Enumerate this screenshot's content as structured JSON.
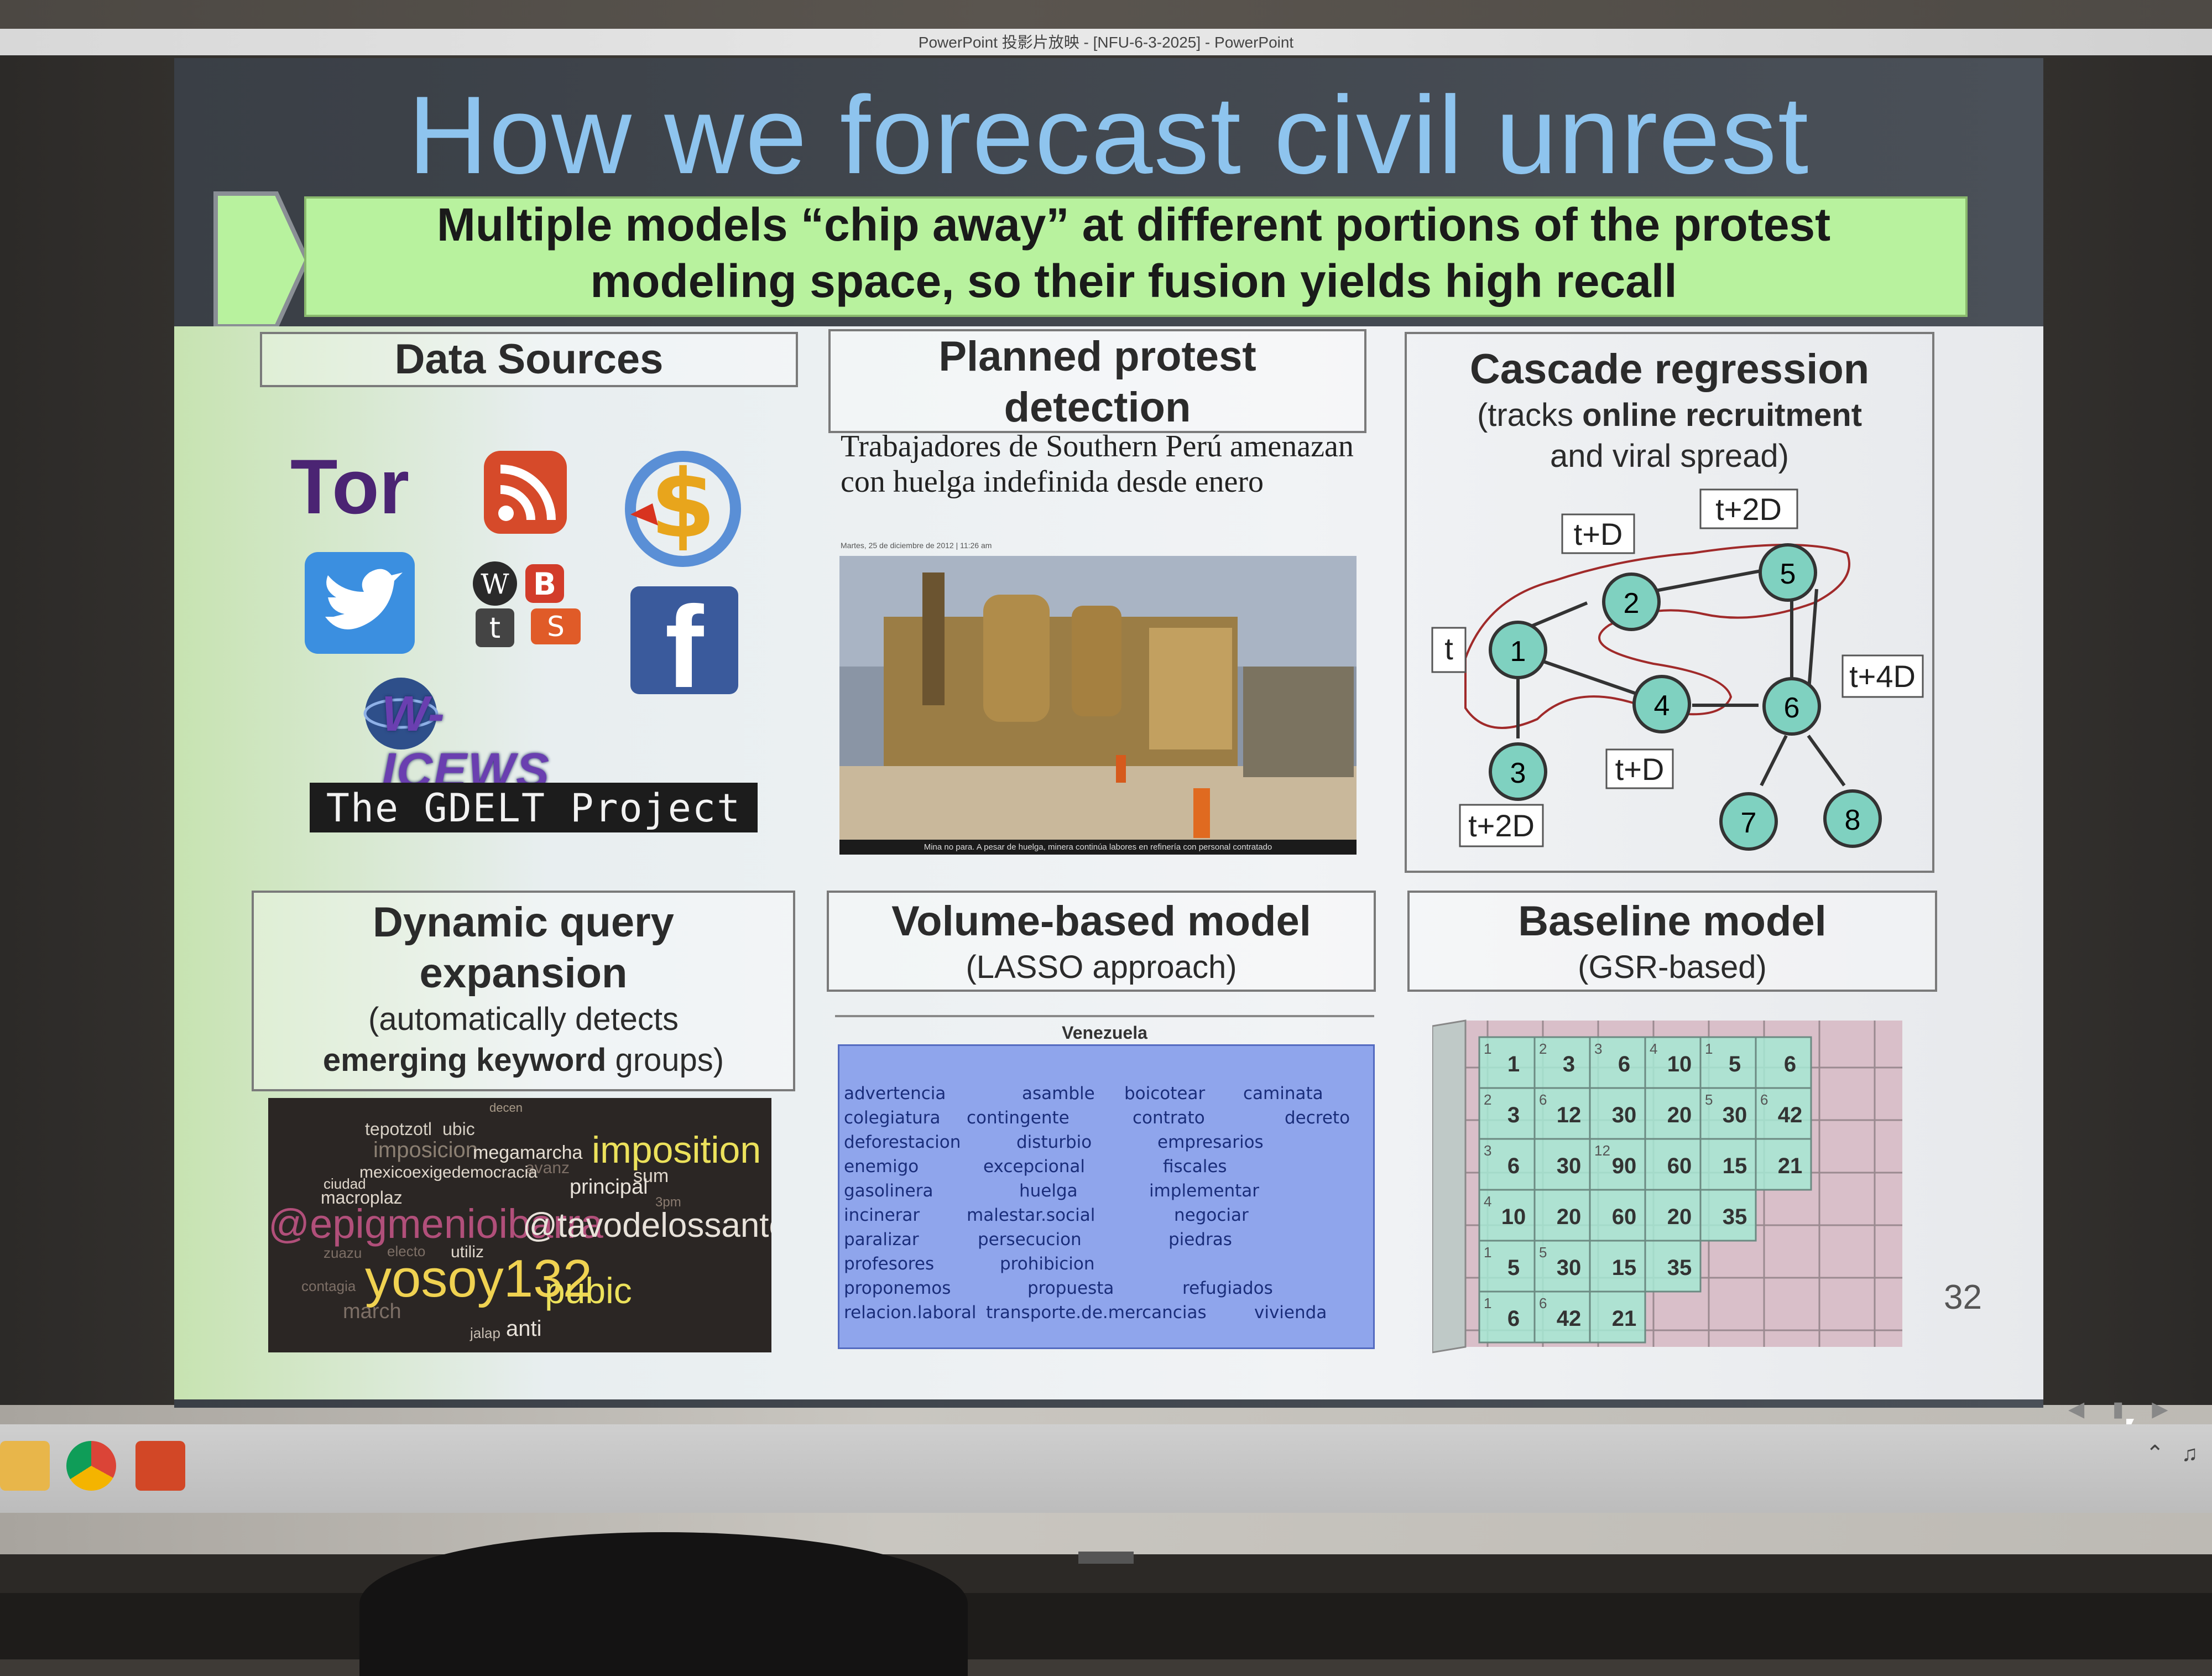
{
  "window": {
    "title": "PowerPoint 投影片放映 - [NFU-6-3-2025] - PowerPoint"
  },
  "slide": {
    "title": "How we forecast civil unrest",
    "subtitle_line1": "Multiple models “chip away” at different portions of the protest",
    "subtitle_line2": "modeling space, so their fusion yields high recall",
    "number": "32"
  },
  "data_sources": {
    "header": "Data Sources",
    "logos": [
      "tor-logo",
      "rss-icon",
      "currency-icon",
      "twitter-icon",
      "social-blogs-icon",
      "facebook-icon",
      "w-icews-logo"
    ],
    "tor_label": "Tor",
    "facebook_label": "f",
    "icews_label": "W-ICEWS",
    "gdelt_label": "The GDELT Project"
  },
  "planned_protest": {
    "header_line1": "Planned protest",
    "header_line2": "detection",
    "headline": "Trabajadores de Southern Perú amenazan con huelga indefinida desde enero",
    "date": "Martes, 25 de diciembre de 2012 | 11:26 am",
    "caption": "Mina no para. A pesar de huelga, minera continúa labores en refinería con personal contratado"
  },
  "cascade": {
    "header": "Cascade regression",
    "sub_prefix": "(tracks ",
    "sub_bold": "online recruitment",
    "sub_line2": "and viral spread)",
    "nodes": [
      "1",
      "2",
      "3",
      "4",
      "5",
      "6",
      "7",
      "8"
    ],
    "time_labels": [
      "t",
      "t+D",
      "t+2D",
      "t+4D",
      "t+D",
      "t+2D"
    ]
  },
  "dynamic_query": {
    "header_line1": "Dynamic query",
    "header_line2": "expansion",
    "sub_line1": "(automatically detects",
    "sub_bold": "emerging keyword",
    "sub_tail": " groups)",
    "words": [
      "decen",
      "tepotzotl",
      "ubic",
      "imposicion",
      "megamarcha",
      "imposition",
      "avanz",
      "mexicoexigedemocracia",
      "sum",
      "ciudad",
      "macroplaz",
      "principal",
      "3pm",
      "@epigmenioibarra",
      "@tavodelossantos",
      "zuazu",
      "electo",
      "utiliz",
      "yosoy132",
      "pubic",
      "contagia",
      "march",
      "jalap",
      "anti"
    ]
  },
  "volume_model": {
    "header": "Volume-based model",
    "sub": "(LASSO approach)",
    "panel_title": "Venezuela",
    "rows": [
      [
        "advertencia",
        "asamble",
        "boicotear",
        "caminata"
      ],
      [
        "colegiatura",
        "contingente",
        "contrato",
        "decreto"
      ],
      [
        "deforestacion",
        "disturbio",
        "empresarios"
      ],
      [
        "enemigo",
        "excepcional",
        "fiscales"
      ],
      [
        "gasolinera",
        "huelga",
        "implementar"
      ],
      [
        "incinerar",
        "malestar.social",
        "negociar"
      ],
      [
        "paralizar",
        "persecucion",
        "piedras"
      ],
      [
        "profesores",
        "prohibicion"
      ],
      [
        "proponemos",
        "propuesta",
        "refugiados"
      ],
      [
        "relacion.laboral",
        "transporte.de.mercancias",
        "vivienda"
      ]
    ]
  },
  "baseline_model": {
    "header": "Baseline model",
    "sub": "(GSR-based)",
    "cells": [
      [
        "1",
        "3",
        "6",
        "10",
        "5",
        "6"
      ],
      [
        "3",
        "12",
        "30",
        "20",
        "30",
        "42"
      ],
      [
        "6",
        "30",
        "90",
        "60",
        "15",
        "21"
      ],
      [
        "10",
        "20",
        "60",
        "20",
        "35"
      ],
      [
        "5",
        "30",
        "15",
        "35"
      ],
      [
        "6",
        "42",
        "21"
      ]
    ],
    "small": [
      [
        "1",
        "2",
        "3",
        "4",
        "1"
      ],
      [
        "2",
        "6",
        "",
        "",
        "5",
        "6"
      ],
      [
        "3",
        "",
        "12",
        "",
        "",
        ""
      ],
      [
        "4",
        "",
        "",
        "",
        "",
        ""
      ],
      [
        "1",
        "5",
        "",
        "",
        "",
        ""
      ],
      [
        "1",
        "6",
        "",
        "",
        "",
        ""
      ]
    ]
  },
  "colors": {
    "title": "#8ec4ee",
    "subtitle_bg": "#b8f29e",
    "node_fill": "#7fd1c0",
    "vz_panel": "#8fa5ec",
    "cube_cell": "#a6e8d3"
  }
}
